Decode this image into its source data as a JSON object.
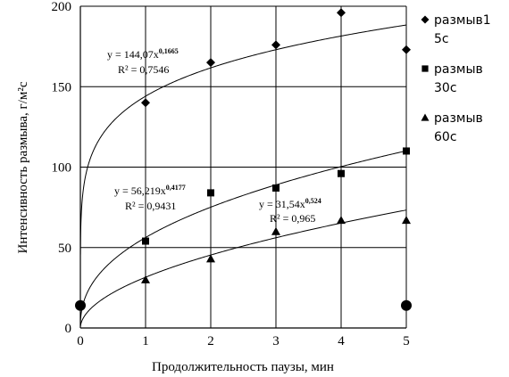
{
  "chart_data": {
    "type": "scatter",
    "title": "",
    "xlabel": "Продолжительность паузы, мин",
    "ylabel": "Интенсивность размыва, г/м²с",
    "xlim": [
      0,
      5
    ],
    "ylim": [
      0,
      200
    ],
    "x_ticks": [
      "0",
      "1",
      "2",
      "3",
      "4",
      "5"
    ],
    "y_ticks": [
      "0",
      "50",
      "100",
      "150",
      "200"
    ],
    "grid": true,
    "legend_position": "right",
    "series": [
      {
        "name": "размыв1 5с",
        "marker": "diamond",
        "x": [
          1,
          2,
          3,
          4,
          5
        ],
        "y": [
          140,
          165,
          176,
          196,
          173
        ],
        "trend": {
          "a": 144.07,
          "b": 0.1665,
          "equation": "y = 144,07x",
          "exponent": "0,1665",
          "r2": "R² = 0,7546"
        }
      },
      {
        "name": "размыв 30с",
        "marker": "square",
        "x": [
          1,
          2,
          3,
          4,
          5
        ],
        "y": [
          54,
          84,
          87,
          96,
          110
        ],
        "trend": {
          "a": 56.219,
          "b": 0.4177,
          "equation": "y = 56,219x",
          "exponent": "0,4177",
          "r2": "R² = 0,9431"
        }
      },
      {
        "name": "размыв 60с",
        "marker": "triangle",
        "x": [
          1,
          2,
          3,
          4,
          5
        ],
        "y": [
          30,
          43,
          60,
          67,
          67
        ],
        "trend": {
          "a": 31.54,
          "b": 0.524,
          "equation": "y = 31,54x",
          "exponent": "0,524",
          "r2": "R² = 0,965"
        }
      },
      {
        "marker": "circle",
        "x": [
          0,
          5
        ],
        "y": [
          14,
          14
        ]
      }
    ],
    "legend": [
      {
        "marker": "diamond",
        "line1": "размыв1",
        "line2": "5с"
      },
      {
        "marker": "square",
        "line1": "размыв",
        "line2": "30с"
      },
      {
        "marker": "triangle",
        "line1": "размыв",
        "line2": "60с"
      }
    ]
  }
}
